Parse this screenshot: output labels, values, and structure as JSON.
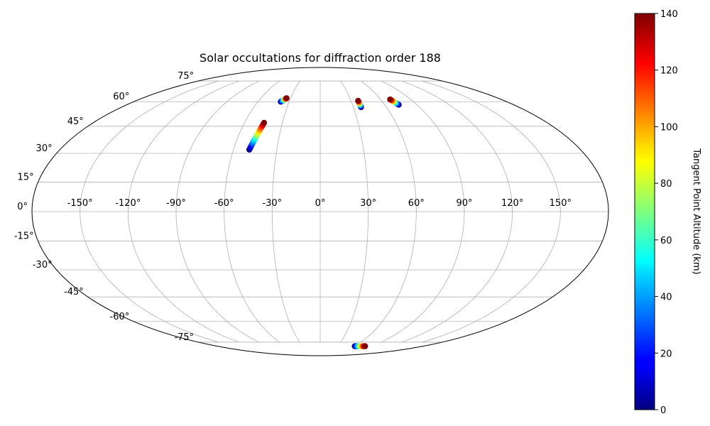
{
  "chart_data": {
    "type": "scatter",
    "projection": "mollweide",
    "title": "Solar occultations for diffraction order 188",
    "xlabel": "",
    "ylabel": "",
    "xlim": [
      -180,
      180
    ],
    "ylim": [
      -90,
      90
    ],
    "grid": true,
    "longitude_ticks": [
      -150,
      -120,
      -90,
      -60,
      -30,
      0,
      30,
      60,
      90,
      120,
      150
    ],
    "latitude_ticks": [
      -75,
      -60,
      -45,
      -30,
      -15,
      0,
      15,
      30,
      45,
      60,
      75
    ],
    "longitude_tick_labels": [
      "-150°",
      "-120°",
      "-90°",
      "-60°",
      "-30°",
      "0°",
      "30°",
      "60°",
      "90°",
      "120°",
      "150°"
    ],
    "latitude_tick_labels": [
      "-75°",
      "-60°",
      "-45°",
      "-30°",
      "-15°",
      "0°",
      "15°",
      "30°",
      "45°",
      "60°",
      "75°"
    ],
    "colorbar": {
      "label": "Tangent Point Altitude (km)",
      "colormap": "jet",
      "range": [
        0,
        140
      ],
      "ticks": [
        0,
        20,
        40,
        60,
        80,
        100,
        120,
        140
      ],
      "tick_labels": [
        "0",
        "20",
        "40",
        "60",
        "80",
        "100",
        "120",
        "140"
      ]
    },
    "series": [
      {
        "x": [
          -38,
          -37.5,
          -37,
          -36.5,
          -36,
          -35.5,
          -35,
          -34.5,
          -34
        ],
        "y": [
          60,
          60.3,
          60.6,
          60.9,
          61.2,
          61.5,
          61.8,
          62.1,
          62.3
        ],
        "altitude": [
          0,
          15,
          30,
          45,
          60,
          80,
          100,
          120,
          140
        ]
      },
      {
        "x": [
          -49,
          -48.7,
          -48.4,
          -48.1,
          -47.8,
          -47.5,
          -47.2,
          -46.9,
          -46.6,
          -46.3,
          -46.0,
          -45.7,
          -45.4,
          -45.1,
          -44.8,
          -44.5
        ],
        "y": [
          32,
          33,
          34,
          35,
          36,
          37,
          38,
          39,
          40,
          41,
          42,
          43,
          44,
          45,
          46,
          47
        ],
        "altitude": [
          0,
          9,
          18,
          28,
          37,
          46,
          55,
          65,
          74,
          83,
          93,
          102,
          111,
          120,
          130,
          140
        ]
      },
      {
        "x": [
          37,
          37,
          37,
          37,
          37,
          37,
          37,
          37
        ],
        "y": [
          56.5,
          57.1,
          57.7,
          58.3,
          58.9,
          59.5,
          60.1,
          60.6
        ],
        "altitude": [
          0,
          20,
          40,
          60,
          80,
          100,
          120,
          140
        ]
      },
      {
        "x": [
          73,
          72.5,
          72,
          71.5,
          71,
          70.5,
          70,
          69.5
        ],
        "y": [
          58,
          58.5,
          59,
          59.5,
          60,
          60.5,
          61,
          61.5
        ],
        "altitude": [
          0,
          20,
          40,
          60,
          80,
          100,
          120,
          140
        ]
      },
      {
        "x": [
          60.5,
          62,
          63.5,
          65,
          66.5,
          68,
          69.5,
          71,
          72.5,
          74,
          75.5,
          77,
          78.5
        ],
        "y": [
          -78.5,
          -78.5,
          -78.5,
          -78.5,
          -78.5,
          -78.5,
          -78.5,
          -78.5,
          -78.5,
          -78.5,
          -78.5,
          -78.5,
          -78.5
        ],
        "altitude": [
          0,
          12,
          23,
          35,
          47,
          58,
          70,
          82,
          93,
          105,
          117,
          128,
          140
        ]
      }
    ]
  }
}
